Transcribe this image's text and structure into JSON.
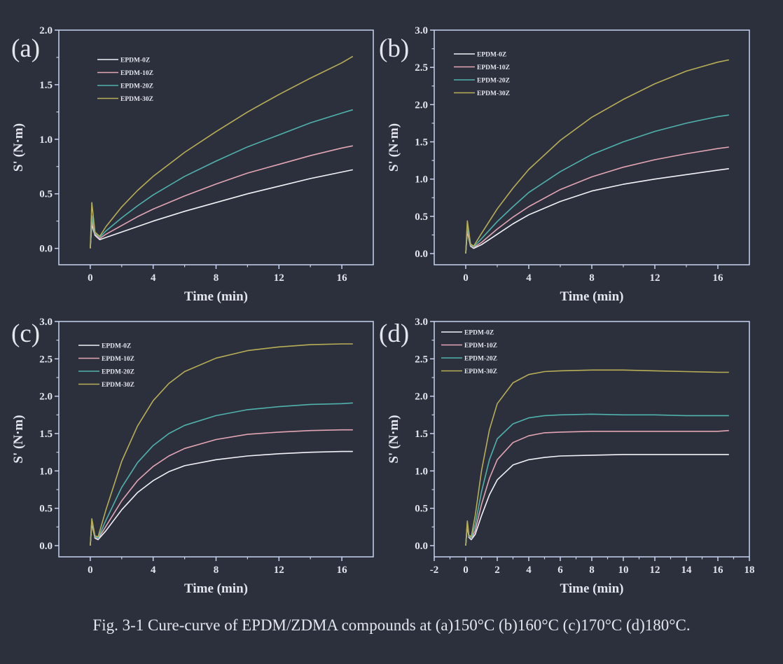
{
  "figure": {
    "caption": "Fig. 3-1 Cure-curve of EPDM/ZDMA compounds at (a)150°C (b)160°C (c)170°C (d)180°C."
  },
  "colors": {
    "background": "#2c303c",
    "axis": "#c7d2ee",
    "text": "#e4e6ee",
    "series": [
      "#f2f3f8",
      "#e3a5b3",
      "#4fb2ad",
      "#b8ae56"
    ]
  },
  "chart_data": [
    {
      "panel_label": "(a)",
      "type": "line",
      "xlabel": "Time (min)",
      "ylabel": "S' (N·m)",
      "xlim": [
        -2,
        18
      ],
      "ylim": [
        -0.15,
        2.0
      ],
      "xticks": [
        0,
        4,
        8,
        12,
        16
      ],
      "yticks": [
        0.0,
        0.5,
        1.0,
        1.5,
        2.0
      ],
      "ytick_labels": [
        "0.0",
        "0.5",
        "1.0",
        "1.5",
        "2.0"
      ],
      "legend_position": "top-left",
      "grid": false,
      "series": [
        {
          "name": "EPDM-0Z",
          "x": [
            0,
            0.1,
            0.3,
            0.6,
            1,
            2,
            3,
            4,
            6,
            8,
            10,
            12,
            14,
            16,
            16.7
          ],
          "y": [
            0.0,
            0.22,
            0.12,
            0.08,
            0.1,
            0.15,
            0.2,
            0.25,
            0.34,
            0.42,
            0.5,
            0.57,
            0.64,
            0.7,
            0.72
          ]
        },
        {
          "name": "EPDM-10Z",
          "x": [
            0,
            0.1,
            0.3,
            0.6,
            1,
            2,
            3,
            4,
            6,
            8,
            10,
            12,
            14,
            16,
            16.7
          ],
          "y": [
            0.0,
            0.25,
            0.13,
            0.09,
            0.13,
            0.21,
            0.29,
            0.36,
            0.48,
            0.59,
            0.69,
            0.77,
            0.85,
            0.92,
            0.94
          ]
        },
        {
          "name": "EPDM-20Z",
          "x": [
            0,
            0.1,
            0.3,
            0.6,
            1,
            2,
            3,
            4,
            6,
            8,
            10,
            12,
            14,
            16,
            16.7
          ],
          "y": [
            0.0,
            0.3,
            0.14,
            0.1,
            0.16,
            0.28,
            0.39,
            0.49,
            0.66,
            0.8,
            0.93,
            1.04,
            1.15,
            1.24,
            1.27
          ]
        },
        {
          "name": "EPDM-30Z",
          "x": [
            0,
            0.1,
            0.3,
            0.6,
            1,
            2,
            3,
            4,
            6,
            8,
            10,
            12,
            14,
            16,
            16.7
          ],
          "y": [
            0.0,
            0.42,
            0.15,
            0.11,
            0.2,
            0.38,
            0.53,
            0.66,
            0.88,
            1.07,
            1.25,
            1.41,
            1.56,
            1.7,
            1.76
          ]
        }
      ]
    },
    {
      "panel_label": "(b)",
      "type": "line",
      "xlabel": "Time (min)",
      "ylabel": "S' (N·m)",
      "xlim": [
        -2,
        18
      ],
      "ylim": [
        -0.15,
        3.0
      ],
      "xticks": [
        0,
        4,
        8,
        12,
        16
      ],
      "yticks": [
        0.0,
        0.5,
        1.0,
        1.5,
        2.0,
        2.5,
        3.0
      ],
      "ytick_labels": [
        "0.0",
        "0.5",
        "1.0",
        "1.5",
        "2.0",
        "2.5",
        "3.0"
      ],
      "legend_position": "top-left",
      "grid": false,
      "series": [
        {
          "name": "EPDM-0Z",
          "x": [
            0,
            0.1,
            0.3,
            0.5,
            1,
            2,
            3,
            4,
            6,
            8,
            10,
            12,
            14,
            16,
            16.7
          ],
          "y": [
            0.0,
            0.3,
            0.1,
            0.07,
            0.12,
            0.26,
            0.4,
            0.52,
            0.7,
            0.84,
            0.93,
            1.0,
            1.06,
            1.12,
            1.14
          ]
        },
        {
          "name": "EPDM-10Z",
          "x": [
            0,
            0.1,
            0.3,
            0.5,
            1,
            2,
            3,
            4,
            6,
            8,
            10,
            12,
            14,
            16,
            16.7
          ],
          "y": [
            0.0,
            0.33,
            0.11,
            0.08,
            0.15,
            0.33,
            0.49,
            0.63,
            0.86,
            1.03,
            1.16,
            1.26,
            1.34,
            1.41,
            1.43
          ]
        },
        {
          "name": "EPDM-20Z",
          "x": [
            0,
            0.1,
            0.3,
            0.5,
            1,
            2,
            3,
            4,
            6,
            8,
            10,
            12,
            14,
            16,
            16.7
          ],
          "y": [
            0.0,
            0.38,
            0.12,
            0.09,
            0.2,
            0.43,
            0.63,
            0.82,
            1.1,
            1.33,
            1.5,
            1.64,
            1.75,
            1.84,
            1.86
          ]
        },
        {
          "name": "EPDM-30Z",
          "x": [
            0,
            0.1,
            0.3,
            0.5,
            1,
            2,
            3,
            4,
            6,
            8,
            10,
            12,
            14,
            16,
            16.7
          ],
          "y": [
            0.0,
            0.44,
            0.13,
            0.1,
            0.27,
            0.6,
            0.88,
            1.13,
            1.52,
            1.83,
            2.07,
            2.28,
            2.45,
            2.57,
            2.6
          ]
        }
      ]
    },
    {
      "panel_label": "(c)",
      "type": "line",
      "xlabel": "Time (min)",
      "ylabel": "S' (N·m)",
      "xlim": [
        -2,
        18
      ],
      "ylim": [
        -0.15,
        3.0
      ],
      "xticks": [
        0,
        4,
        8,
        12,
        16
      ],
      "yticks": [
        0.0,
        0.5,
        1.0,
        1.5,
        2.0,
        2.5,
        3.0
      ],
      "ytick_labels": [
        "0.0",
        "0.5",
        "1.0",
        "1.5",
        "2.0",
        "2.5",
        "3.0"
      ],
      "legend_position": "top-left",
      "grid": false,
      "series": [
        {
          "name": "EPDM-0Z",
          "x": [
            0,
            0.1,
            0.3,
            0.5,
            1,
            2,
            3,
            4,
            5,
            6,
            8,
            10,
            12,
            14,
            16,
            16.7
          ],
          "y": [
            0.0,
            0.3,
            0.1,
            0.08,
            0.2,
            0.48,
            0.71,
            0.87,
            0.99,
            1.07,
            1.15,
            1.2,
            1.23,
            1.25,
            1.26,
            1.26
          ]
        },
        {
          "name": "EPDM-10Z",
          "x": [
            0,
            0.1,
            0.3,
            0.5,
            1,
            2,
            3,
            4,
            5,
            6,
            8,
            10,
            12,
            14,
            16,
            16.7
          ],
          "y": [
            0.0,
            0.32,
            0.11,
            0.09,
            0.26,
            0.6,
            0.87,
            1.06,
            1.2,
            1.3,
            1.42,
            1.49,
            1.52,
            1.54,
            1.55,
            1.55
          ]
        },
        {
          "name": "EPDM-20Z",
          "x": [
            0,
            0.1,
            0.3,
            0.5,
            1,
            2,
            3,
            4,
            5,
            6,
            8,
            10,
            12,
            14,
            16,
            16.7
          ],
          "y": [
            0.0,
            0.34,
            0.12,
            0.1,
            0.34,
            0.78,
            1.11,
            1.34,
            1.5,
            1.61,
            1.74,
            1.82,
            1.86,
            1.89,
            1.9,
            1.91
          ]
        },
        {
          "name": "EPDM-30Z",
          "x": [
            0,
            0.1,
            0.3,
            0.5,
            1,
            2,
            3,
            4,
            5,
            6,
            8,
            10,
            12,
            14,
            16,
            16.7
          ],
          "y": [
            0.0,
            0.36,
            0.13,
            0.12,
            0.48,
            1.13,
            1.6,
            1.94,
            2.17,
            2.33,
            2.51,
            2.61,
            2.66,
            2.69,
            2.7,
            2.7
          ]
        }
      ]
    },
    {
      "panel_label": "(d)",
      "type": "line",
      "xlabel": "Time (min)",
      "ylabel": "S' (N·m)",
      "xlim": [
        -2,
        18
      ],
      "ylim": [
        -0.15,
        3.0
      ],
      "xticks": [
        -2,
        0,
        2,
        4,
        6,
        8,
        10,
        12,
        14,
        16,
        18
      ],
      "yticks": [
        0.0,
        0.5,
        1.0,
        1.5,
        2.0,
        2.5,
        3.0
      ],
      "ytick_labels": [
        "0.0",
        "0.5",
        "1.0",
        "1.5",
        "2.0",
        "2.5",
        "3.0"
      ],
      "legend_position": "top-left",
      "grid": false,
      "series": [
        {
          "name": "EPDM-0Z",
          "x": [
            0,
            0.1,
            0.2,
            0.35,
            0.6,
            1,
            1.5,
            2,
            3,
            4,
            5,
            6,
            8,
            10,
            12,
            14,
            16,
            16.7
          ],
          "y": [
            0.0,
            0.28,
            0.11,
            0.08,
            0.15,
            0.4,
            0.68,
            0.88,
            1.08,
            1.15,
            1.18,
            1.2,
            1.21,
            1.22,
            1.22,
            1.22,
            1.22,
            1.22
          ]
        },
        {
          "name": "EPDM-10Z",
          "x": [
            0,
            0.1,
            0.2,
            0.35,
            0.6,
            1,
            1.5,
            2,
            3,
            4,
            5,
            6,
            8,
            10,
            12,
            14,
            16,
            16.7
          ],
          "y": [
            0.0,
            0.3,
            0.12,
            0.09,
            0.2,
            0.55,
            0.9,
            1.15,
            1.38,
            1.47,
            1.51,
            1.52,
            1.53,
            1.53,
            1.53,
            1.53,
            1.53,
            1.54
          ]
        },
        {
          "name": "EPDM-20Z",
          "x": [
            0,
            0.1,
            0.2,
            0.35,
            0.6,
            1,
            1.5,
            2,
            3,
            4,
            5,
            6,
            8,
            10,
            12,
            14,
            16,
            16.7
          ],
          "y": [
            0.0,
            0.32,
            0.13,
            0.1,
            0.28,
            0.72,
            1.15,
            1.43,
            1.63,
            1.71,
            1.74,
            1.75,
            1.76,
            1.75,
            1.75,
            1.74,
            1.74,
            1.74
          ]
        },
        {
          "name": "EPDM-30Z",
          "x": [
            0,
            0.1,
            0.2,
            0.35,
            0.6,
            1,
            1.5,
            2,
            3,
            4,
            5,
            6,
            8,
            10,
            12,
            14,
            16,
            16.7
          ],
          "y": [
            0.0,
            0.33,
            0.14,
            0.12,
            0.4,
            1.0,
            1.55,
            1.9,
            2.18,
            2.29,
            2.33,
            2.34,
            2.35,
            2.35,
            2.34,
            2.33,
            2.32,
            2.32
          ]
        }
      ]
    }
  ]
}
